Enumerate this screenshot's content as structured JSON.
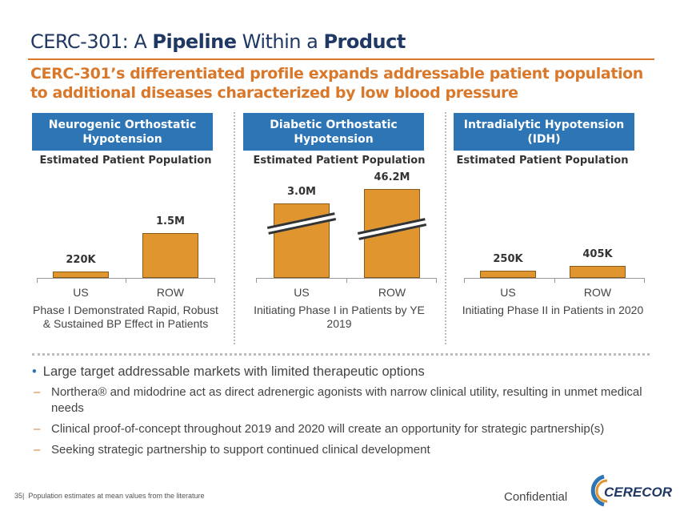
{
  "title": {
    "prefix": "CERC-301: A ",
    "bold1": "Pipeline",
    "mid": " Within a ",
    "bold2": "Product"
  },
  "subtitle": "CERC-301’s differentiated profile expands addressable patient population to additional diseases characterized by low blood pressure",
  "panels": [
    {
      "header": "Neurogenic Orthostatic Hypotension",
      "est_label": "Estimated Patient Population",
      "note": "Phase I Demonstrated Rapid, Robust & Sustained BP Effect in Patients"
    },
    {
      "header": "Diabetic Orthostatic Hypotension",
      "est_label": "Estimated Patient Population",
      "note": "Initiating Phase I in Patients by YE 2019"
    },
    {
      "header": "Intradialytic Hypotension (IDH)",
      "est_label": "Estimated Patient Population",
      "note": "Initiating Phase II in Patients in 2020"
    }
  ],
  "chart_data": [
    {
      "type": "bar",
      "categories": [
        "US",
        "ROW"
      ],
      "values": [
        220000,
        1500000
      ],
      "labels": [
        "220K",
        "1.5M"
      ],
      "title": "Neurogenic Orthostatic Hypotension"
    },
    {
      "type": "bar",
      "categories": [
        "US",
        "ROW"
      ],
      "values": [
        3000000,
        46200000
      ],
      "labels": [
        "3.0M",
        "46.2M"
      ],
      "axis_break": true,
      "title": "Diabetic Orthostatic Hypotension"
    },
    {
      "type": "bar",
      "categories": [
        "US",
        "ROW"
      ],
      "values": [
        250000,
        405000
      ],
      "labels": [
        "250K",
        "405K"
      ],
      "title": "Intradialytic Hypotension (IDH)"
    }
  ],
  "bullets": {
    "main": "Large target addressable markets with limited therapeutic options",
    "subs": [
      "Northera® and midodrine act as direct adrenergic agonists with narrow clinical utility, resulting in unmet medical needs",
      "Clinical proof-of-concept throughout 2019 and 2020 will create an opportunity for strategic partnership(s)",
      "Seeking strategic partnership to support continued clinical development"
    ]
  },
  "footer": {
    "page": "35|",
    "note": "Population estimates at mean values from the literature",
    "confidential": "Confidential",
    "logo_text": "CERECOR"
  },
  "colors": {
    "bar": "#e0952f",
    "header": "#2e75b6",
    "accent": "#d9782a",
    "title": "#1f3864"
  }
}
